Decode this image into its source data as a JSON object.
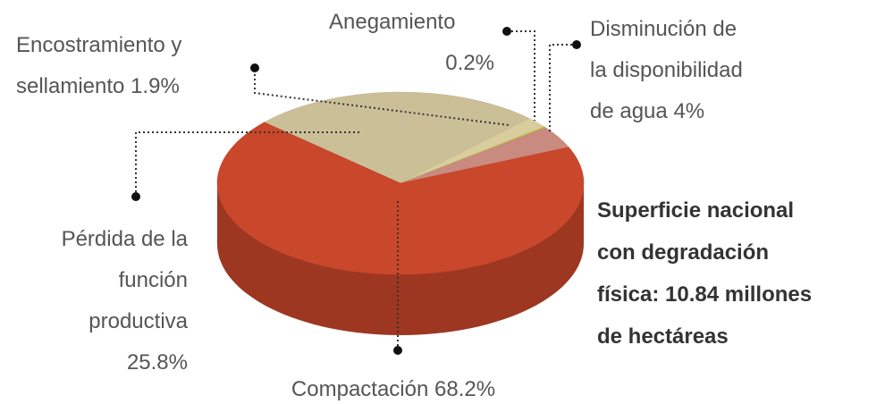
{
  "chart_data": {
    "type": "pie",
    "categories": [
      "Pérdida de la función productiva",
      "Encostramiento y sellamiento",
      "Anegamiento",
      "Disminución de la disponibilidad de agua",
      "Compactación"
    ],
    "values": [
      25.8,
      1.9,
      0.2,
      4,
      68.2
    ],
    "value_labels": [
      "25.8%",
      "1.9%",
      "0.2%",
      "4%",
      "68.2%"
    ],
    "colors": [
      "#cbbf98",
      "#d9cd9f",
      "#c2c746",
      "#c98a80",
      "#c9472a"
    ],
    "annotation": [
      "Superficie nacional",
      "con degradación",
      "física: 10.84 millones",
      "de hectáreas"
    ]
  }
}
